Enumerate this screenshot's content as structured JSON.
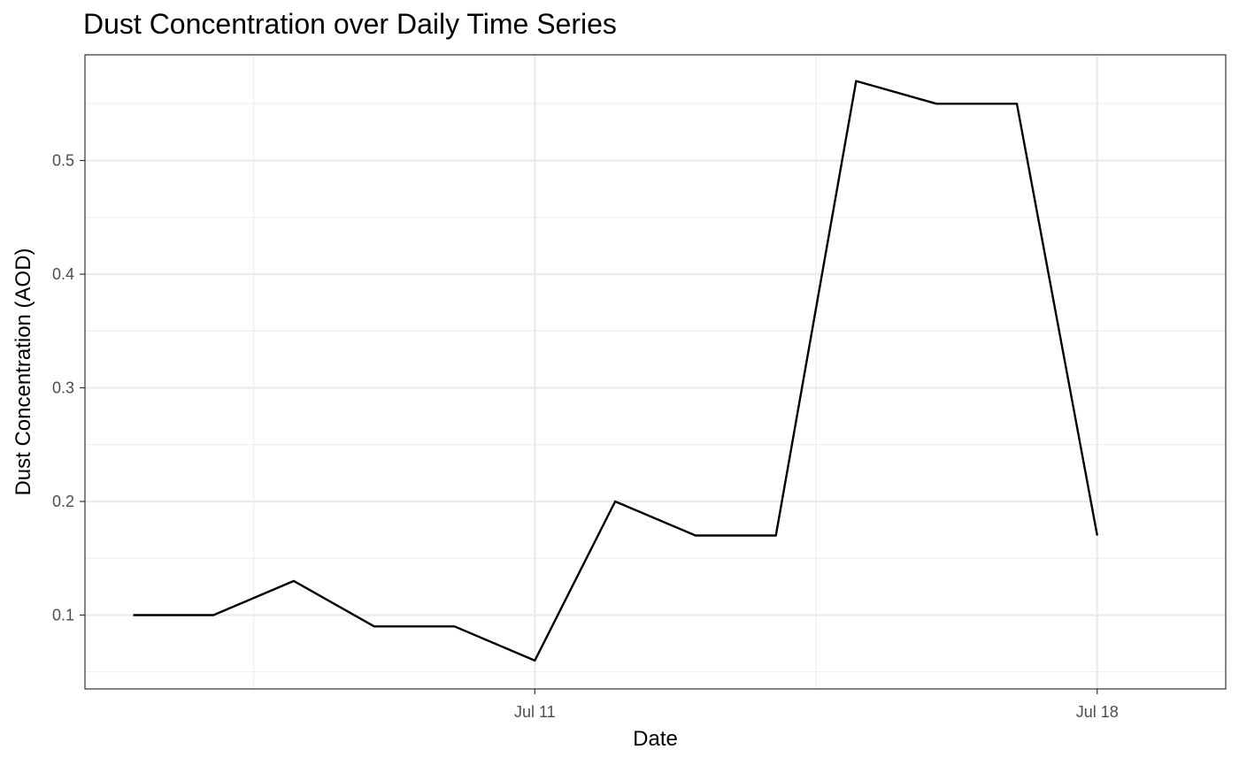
{
  "chart_data": {
    "type": "line",
    "title": "Dust Concentration over Daily Time Series",
    "xlabel": "Date",
    "ylabel": "Dust Concentration (AOD)",
    "x": [
      "2024-07-06",
      "2024-07-07",
      "2024-07-08",
      "2024-07-09",
      "2024-07-10",
      "2024-07-11",
      "2024-07-12",
      "2024-07-13",
      "2024-07-14",
      "2024-07-15",
      "2024-07-16",
      "2024-07-17",
      "2024-07-18",
      "2024-07-19"
    ],
    "series": [
      {
        "values": [
          0.1,
          0.1,
          0.13,
          0.09,
          0.09,
          0.06,
          0.2,
          0.17,
          0.17,
          0.57,
          0.55,
          0.55,
          0.17,
          null
        ]
      }
    ],
    "x_ticks": [
      {
        "date": "2024-07-11",
        "label": "Jul 11"
      },
      {
        "date": "2024-07-18",
        "label": "Jul 18"
      }
    ],
    "y_ticks": [
      0.1,
      0.2,
      0.3,
      0.4,
      0.5
    ],
    "xlim": [
      "2024-07-05",
      "2024-07-19"
    ],
    "ylim": [
      0.035,
      0.593
    ],
    "grid": true,
    "line_color": "#000000",
    "grid_color": "#ebebeb"
  }
}
